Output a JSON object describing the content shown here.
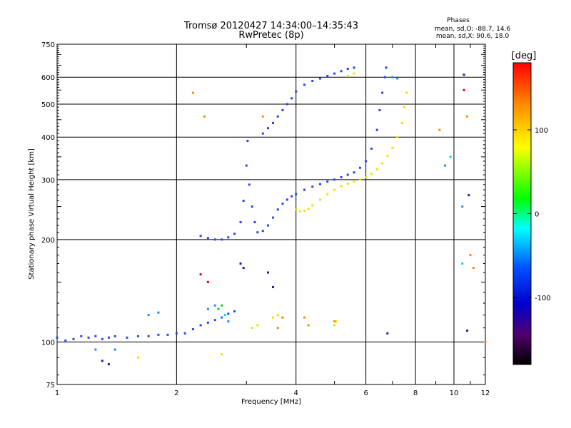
{
  "title": "Tromsø 20120427 14:34:00–14:35:43",
  "subtitle": "RwPretec (8p)",
  "phases_box": {
    "heading": "Phases",
    "line1": "mean, sd,O: -88.7, 14.6",
    "line2": "mean, sd,X:  90.6, 18.0"
  },
  "colorbar": {
    "label": "[deg]",
    "range": [
      -180,
      180
    ],
    "tick_values": [
      100,
      0,
      -100
    ],
    "tick_labels": [
      "100",
      "0",
      "-100"
    ]
  },
  "chart_data": {
    "type": "scatter",
    "xlabel": "Frequency [MHz]",
    "ylabel": "Stationary phase Virtual Height [km]",
    "xscale": "log",
    "yscale": "log",
    "xlim": [
      1,
      12
    ],
    "ylim": [
      75,
      750
    ],
    "x_ticks": [
      1,
      2,
      4,
      6,
      8,
      10,
      12
    ],
    "x_tick_labels": [
      "1",
      "2",
      "4",
      "6",
      "8",
      "10",
      "12"
    ],
    "y_ticks": [
      75,
      100,
      200,
      300,
      400,
      500,
      600,
      750
    ],
    "y_tick_labels": [
      "75",
      "100",
      "200",
      "300",
      "400",
      "500",
      "600",
      "750"
    ],
    "grid": true,
    "series": [
      {
        "color": "#2a44e8",
        "points": [
          [
            1.0,
            103
          ],
          [
            1.05,
            101
          ],
          [
            1.1,
            102
          ],
          [
            1.15,
            104
          ],
          [
            1.2,
            103
          ],
          [
            1.25,
            104
          ],
          [
            1.3,
            102
          ],
          [
            1.35,
            103
          ],
          [
            1.4,
            104
          ],
          [
            1.5,
            103
          ],
          [
            1.6,
            104
          ],
          [
            1.7,
            104
          ],
          [
            1.8,
            105
          ],
          [
            1.9,
            105
          ],
          [
            2.0,
            106
          ],
          [
            2.1,
            106
          ],
          [
            2.2,
            109
          ],
          [
            2.3,
            112
          ],
          [
            2.4,
            114
          ],
          [
            2.5,
            116
          ],
          [
            2.6,
            118
          ],
          [
            2.7,
            121
          ],
          [
            2.8,
            123
          ],
          [
            2.3,
            205
          ],
          [
            2.4,
            202
          ],
          [
            2.5,
            200
          ],
          [
            2.6,
            200
          ],
          [
            2.7,
            203
          ],
          [
            2.8,
            208
          ],
          [
            2.9,
            225
          ],
          [
            2.95,
            260
          ],
          [
            3.0,
            330
          ],
          [
            3.02,
            390
          ],
          [
            3.05,
            290
          ],
          [
            3.1,
            250
          ],
          [
            3.15,
            225
          ],
          [
            3.2,
            210
          ],
          [
            3.3,
            212
          ],
          [
            3.4,
            220
          ],
          [
            3.5,
            232
          ],
          [
            3.6,
            245
          ],
          [
            3.7,
            255
          ],
          [
            3.8,
            262
          ],
          [
            3.9,
            268
          ],
          [
            4.0,
            272
          ],
          [
            4.2,
            280
          ],
          [
            4.4,
            286
          ],
          [
            4.6,
            291
          ],
          [
            4.8,
            296
          ],
          [
            5.0,
            300
          ],
          [
            5.2,
            305
          ],
          [
            5.4,
            310
          ],
          [
            5.6,
            315
          ],
          [
            5.8,
            325
          ],
          [
            6.0,
            340
          ],
          [
            6.2,
            370
          ],
          [
            6.4,
            420
          ],
          [
            6.5,
            480
          ],
          [
            6.6,
            540
          ],
          [
            6.7,
            600
          ],
          [
            6.75,
            640
          ],
          [
            3.3,
            410
          ],
          [
            3.4,
            425
          ],
          [
            3.5,
            440
          ],
          [
            3.6,
            460
          ],
          [
            3.7,
            480
          ],
          [
            3.8,
            500
          ],
          [
            3.9,
            520
          ],
          [
            4.0,
            545
          ],
          [
            4.2,
            570
          ],
          [
            4.4,
            585
          ],
          [
            4.6,
            595
          ],
          [
            4.8,
            605
          ],
          [
            5.0,
            615
          ],
          [
            5.2,
            625
          ],
          [
            5.4,
            635
          ],
          [
            5.6,
            640
          ]
        ]
      },
      {
        "color": "#e6e600",
        "points": [
          [
            4.0,
            245
          ],
          [
            4.1,
            242
          ],
          [
            4.2,
            243
          ],
          [
            4.3,
            246
          ],
          [
            4.4,
            252
          ],
          [
            4.6,
            262
          ],
          [
            4.8,
            272
          ],
          [
            5.0,
            280
          ],
          [
            5.2,
            287
          ],
          [
            5.4,
            292
          ],
          [
            5.6,
            296
          ],
          [
            5.8,
            300
          ],
          [
            6.0,
            305
          ],
          [
            6.2,
            312
          ],
          [
            6.4,
            322
          ],
          [
            6.6,
            335
          ],
          [
            6.8,
            352
          ],
          [
            7.0,
            372
          ],
          [
            7.2,
            400
          ],
          [
            7.4,
            440
          ],
          [
            7.5,
            490
          ],
          [
            7.6,
            540
          ],
          [
            3.1,
            110
          ],
          [
            3.2,
            112
          ],
          [
            3.5,
            118
          ],
          [
            3.6,
            120
          ],
          [
            5.0,
            112
          ],
          [
            5.05,
            115
          ],
          [
            5.4,
            605
          ],
          [
            5.6,
            615
          ],
          [
            2.6,
            92
          ],
          [
            1.6,
            90
          ]
        ]
      },
      {
        "color": "#1e8cf0",
        "points": [
          [
            1.7,
            120
          ],
          [
            1.8,
            122
          ],
          [
            2.4,
            125
          ],
          [
            2.5,
            128
          ],
          [
            2.6,
            118
          ],
          [
            2.7,
            115
          ],
          [
            1.25,
            95
          ],
          [
            1.4,
            95
          ],
          [
            7.0,
            600
          ],
          [
            7.2,
            595
          ],
          [
            9.5,
            330
          ],
          [
            10.5,
            250
          ]
        ]
      },
      {
        "color": "#ff8800",
        "points": [
          [
            2.2,
            540
          ],
          [
            2.35,
            460
          ],
          [
            3.3,
            460
          ],
          [
            3.6,
            110
          ],
          [
            3.7,
            118
          ],
          [
            4.2,
            118
          ],
          [
            4.3,
            112
          ],
          [
            5.0,
            115
          ],
          [
            9.2,
            420
          ],
          [
            10.8,
            460
          ],
          [
            11.0,
            180
          ],
          [
            11.2,
            165
          ],
          [
            12.0,
            100
          ]
        ]
      },
      {
        "color": "#e00020",
        "points": [
          [
            2.4,
            150
          ],
          [
            2.3,
            158
          ],
          [
            10.6,
            550
          ]
        ]
      },
      {
        "color": "#1ec832",
        "points": [
          [
            2.55,
            125
          ],
          [
            2.6,
            128
          ]
        ]
      },
      {
        "color": "#00d8e8",
        "points": [
          [
            9.8,
            350
          ],
          [
            10.5,
            170
          ],
          [
            2.65,
            120
          ]
        ]
      },
      {
        "color": "#1a1ab4",
        "points": [
          [
            1.3,
            88
          ],
          [
            1.35,
            86
          ],
          [
            2.9,
            170
          ],
          [
            2.95,
            165
          ],
          [
            3.4,
            160
          ],
          [
            3.5,
            145
          ],
          [
            6.8,
            106
          ],
          [
            10.8,
            108
          ],
          [
            10.9,
            270
          ],
          [
            10.6,
            610
          ]
        ]
      }
    ]
  }
}
